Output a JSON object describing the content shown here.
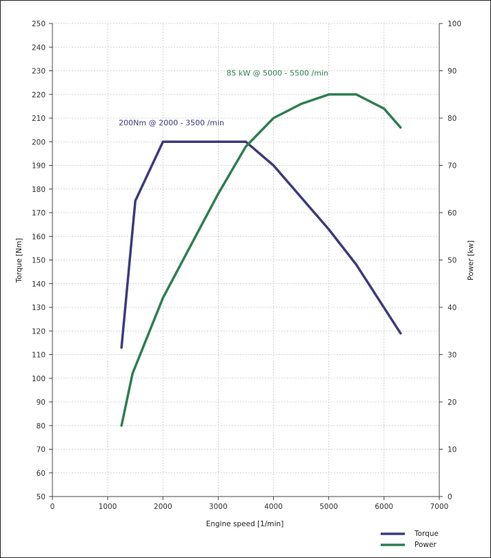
{
  "chart_data": {
    "type": "line",
    "xlabel": "Engine speed [1/min]",
    "ylabel": "Torque [Nm]",
    "y2label": "Power [kw]",
    "xlim": [
      0,
      7000
    ],
    "ylim": [
      50,
      250
    ],
    "y2lim": [
      0,
      100
    ],
    "x_ticks": [
      "0",
      "1000",
      "2000",
      "3000",
      "4000",
      "5000",
      "6000",
      "7000"
    ],
    "y_ticks": [
      "50",
      "60",
      "70",
      "80",
      "90",
      "100",
      "110",
      "120",
      "130",
      "140",
      "150",
      "160",
      "170",
      "180",
      "190",
      "200",
      "210",
      "220",
      "230",
      "240",
      "250"
    ],
    "y2_ticks": [
      "0",
      "10",
      "20",
      "30",
      "40",
      "50",
      "60",
      "70",
      "80",
      "90",
      "100"
    ],
    "grid": true,
    "legend_position": "bottom-right",
    "series": [
      {
        "name": "Torque",
        "axis": "left",
        "color": "#3d3a7e",
        "points": [
          [
            1250,
            113
          ],
          [
            1500,
            175
          ],
          [
            2000,
            200
          ],
          [
            3500,
            200
          ],
          [
            4000,
            190
          ],
          [
            5000,
            163
          ],
          [
            5500,
            148
          ],
          [
            6300,
            119
          ]
        ]
      },
      {
        "name": "Power",
        "axis": "right",
        "color": "#2f7e52",
        "points": [
          [
            1250,
            15
          ],
          [
            1450,
            26
          ],
          [
            2000,
            42
          ],
          [
            3000,
            64
          ],
          [
            3500,
            74
          ],
          [
            4000,
            80
          ],
          [
            4500,
            83
          ],
          [
            5000,
            85
          ],
          [
            5500,
            85
          ],
          [
            6000,
            82
          ],
          [
            6300,
            78
          ]
        ]
      }
    ],
    "annotations": [
      {
        "text": "200Nm @ 2000 - 3500 /min",
        "series": "Torque",
        "at": [
          1200,
          207
        ]
      },
      {
        "text": "85 kW @ 5000 - 5500 /min",
        "series": "Power",
        "at": [
          3150,
          89
        ]
      }
    ]
  }
}
